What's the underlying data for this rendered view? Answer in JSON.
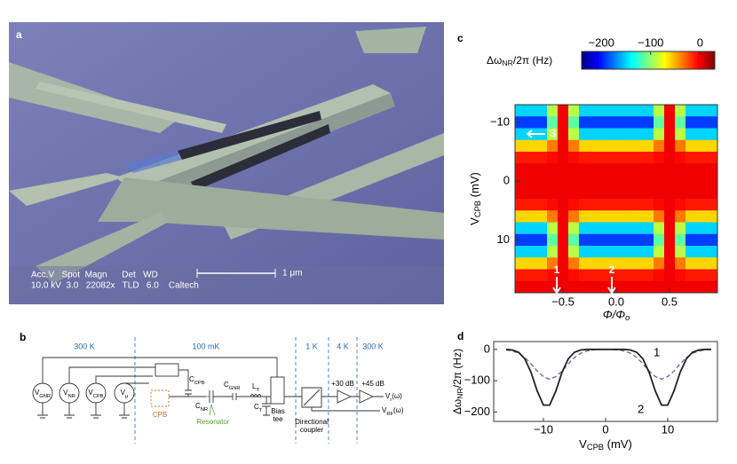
{
  "panel_a": {
    "label": "a",
    "sem_header": "Acc.V   Spot  Magn      Det   WD",
    "sem_values": "10.0 kV  3.0   22082x   TLD   6.0    Caltech",
    "scale_bar": "1 μm"
  },
  "panel_b": {
    "label": "b",
    "stages": [
      "300 K",
      "100 mK",
      "1 K",
      "4 K",
      "300 K"
    ],
    "sources": [
      {
        "main": "V",
        "sub": "GNR"
      },
      {
        "main": "V",
        "sub": "NR"
      },
      {
        "main": "V",
        "sub": "CPB"
      },
      {
        "main": "V",
        "sub": "μ"
      }
    ],
    "components": [
      {
        "main": "C",
        "sub": "CPB"
      },
      {
        "main": "C",
        "sub": "NR"
      },
      {
        "main": "C",
        "sub": "GNR"
      },
      {
        "main": "L",
        "sub": "T"
      },
      {
        "main": "C",
        "sub": "T"
      }
    ],
    "cpb": "CPB",
    "resonator": "Resonator",
    "bias_tee": [
      "Bias",
      "tee"
    ],
    "coupler": [
      "Directional",
      "coupler"
    ],
    "amp1": "+30 dB",
    "amp2": "+45 dB",
    "outputs": [
      {
        "main": "V",
        "sub": "r",
        "suffix": "(ω)"
      },
      {
        "main": "V",
        "sub": "RF",
        "suffix": "(ω)"
      }
    ]
  },
  "chart_data": [
    {
      "type": "heatmap",
      "label": "c",
      "colormap": "jet",
      "colorbar_label": {
        "main": "Δω",
        "sub": "NR",
        "rest": "/2π (Hz)"
      },
      "zlim": [
        -240,
        30
      ],
      "zticks": [
        {
          "value": -200,
          "label": "−200"
        },
        {
          "value": -100,
          "label": "−100"
        },
        0
      ],
      "xlabel": {
        "main": "Φ/Φ",
        "sub": "o"
      },
      "ylabel": {
        "main": "V",
        "sub": "CPB",
        "rest": " (mV)"
      },
      "xlim": [
        -0.95,
        0.95
      ],
      "xticks": [
        {
          "value": -0.5,
          "label": "−0.5"
        },
        {
          "value": 0,
          "label": "0.0"
        },
        0.5
      ],
      "ylim": [
        -13,
        19
      ],
      "y_reversed": true,
      "yticks": [
        {
          "value": -10,
          "label": "−10"
        },
        0,
        10
      ],
      "annotations": [
        "3",
        "1",
        "2"
      ],
      "x": [
        -0.9,
        -0.8,
        -0.7,
        -0.6,
        -0.5,
        -0.4,
        -0.3,
        -0.2,
        -0.1,
        0,
        0.1,
        0.2,
        0.3,
        0.4,
        0.5,
        0.6,
        0.7,
        0.8,
        0.9
      ],
      "y": [
        -12,
        -10,
        -8,
        -6,
        -4,
        -2,
        0,
        2,
        4,
        6,
        8,
        10,
        12,
        14,
        16,
        18
      ],
      "z": [
        [
          -150,
          -150,
          -150,
          -90,
          0,
          -90,
          -150,
          -150,
          -150,
          -150,
          -150,
          -150,
          -150,
          -90,
          0,
          -90,
          -150,
          -150,
          -150
        ],
        [
          -190,
          -190,
          -190,
          -114,
          0,
          -114,
          -190,
          -190,
          -190,
          -190,
          -190,
          -190,
          -190,
          -114,
          0,
          -114,
          -190,
          -190,
          -190
        ],
        [
          -150,
          -150,
          -150,
          -90,
          0,
          -90,
          -150,
          -150,
          -150,
          -150,
          -150,
          -150,
          -150,
          -90,
          0,
          -90,
          -150,
          -150,
          -150
        ],
        [
          -60,
          -60,
          -60,
          -36,
          0,
          -36,
          -60,
          -60,
          -60,
          -60,
          -60,
          -60,
          -60,
          -36,
          0,
          -36,
          -60,
          -60,
          -60
        ],
        [
          -10,
          -10,
          -10,
          -6,
          0,
          -6,
          -10,
          -10,
          -10,
          -10,
          -10,
          -10,
          -10,
          -6,
          0,
          -6,
          -10,
          -10,
          -10
        ],
        [
          0,
          0,
          0,
          0,
          0,
          0,
          0,
          0,
          0,
          0,
          0,
          0,
          0,
          0,
          0,
          0,
          0,
          0,
          0
        ],
        [
          0,
          0,
          0,
          0,
          0,
          0,
          0,
          0,
          0,
          0,
          0,
          0,
          0,
          0,
          0,
          0,
          0,
          0,
          0
        ],
        [
          0,
          0,
          0,
          0,
          0,
          0,
          0,
          0,
          0,
          0,
          0,
          0,
          0,
          0,
          0,
          0,
          0,
          0,
          0
        ],
        [
          -10,
          -10,
          -10,
          -6,
          0,
          -6,
          -10,
          -10,
          -10,
          -10,
          -10,
          -10,
          -10,
          -6,
          0,
          -6,
          -10,
          -10,
          -10
        ],
        [
          -60,
          -60,
          -60,
          -36,
          0,
          -36,
          -60,
          -60,
          -60,
          -60,
          -60,
          -60,
          -60,
          -36,
          0,
          -36,
          -60,
          -60,
          -60
        ],
        [
          -150,
          -150,
          -150,
          -90,
          0,
          -90,
          -150,
          -150,
          -150,
          -150,
          -150,
          -150,
          -150,
          -90,
          0,
          -90,
          -150,
          -150,
          -150
        ],
        [
          -190,
          -190,
          -190,
          -114,
          0,
          -114,
          -190,
          -190,
          -190,
          -190,
          -190,
          -190,
          -190,
          -114,
          0,
          -114,
          -190,
          -190,
          -190
        ],
        [
          -150,
          -150,
          -150,
          -90,
          0,
          -90,
          -150,
          -150,
          -150,
          -150,
          -150,
          -150,
          -150,
          -90,
          0,
          -90,
          -150,
          -150,
          -150
        ],
        [
          -60,
          -60,
          -60,
          -36,
          0,
          -36,
          -60,
          -60,
          -60,
          -60,
          -60,
          -60,
          -60,
          -36,
          0,
          -36,
          -60,
          -60,
          -60
        ],
        [
          -10,
          -10,
          -10,
          -6,
          0,
          -6,
          -10,
          -10,
          -10,
          -10,
          -10,
          -10,
          -10,
          -6,
          0,
          -6,
          -10,
          -10,
          -10
        ],
        [
          0,
          0,
          0,
          0,
          0,
          0,
          0,
          0,
          0,
          0,
          0,
          0,
          0,
          0,
          0,
          0,
          0,
          0,
          0
        ]
      ]
    },
    {
      "type": "line",
      "label": "d",
      "xlabel": {
        "main": "V",
        "sub": "CPB",
        "rest": " (mV)"
      },
      "ylabel": {
        "main": "Δω",
        "sub": "NR",
        "rest": "/2π (Hz)"
      },
      "xlim": [
        -18,
        18
      ],
      "xticks": [
        {
          "value": -10,
          "label": "−10"
        },
        0,
        10
      ],
      "ylim": [
        -230,
        25
      ],
      "yticks": [
        {
          "value": -200,
          "label": "−200"
        },
        {
          "value": -100,
          "label": "−100"
        },
        0
      ],
      "x": [
        -16,
        -15,
        -14,
        -13,
        -12,
        -11,
        -10,
        -9,
        -8,
        -7,
        -6,
        -5,
        -4,
        -3,
        -2,
        -1,
        0,
        1,
        2,
        3,
        4,
        5,
        6,
        7,
        8,
        9,
        10,
        11,
        12,
        13,
        14,
        15,
        16,
        17
      ],
      "series": [
        {
          "name": "1",
          "color": "#5b68a6",
          "dashed": true,
          "values": [
            -2,
            -5,
            -12,
            -26,
            -46,
            -69,
            -87,
            -95,
            -87,
            -69,
            -46,
            -26,
            -12,
            -5,
            -2,
            0,
            0,
            0,
            -2,
            -5,
            -12,
            -26,
            -46,
            -69,
            -87,
            -95,
            -87,
            -69,
            -46,
            -26,
            -12,
            -5,
            -2,
            0
          ]
        },
        {
          "name": "2",
          "color": "#222222",
          "dashed": false,
          "values": [
            0,
            -2,
            -9,
            -30,
            -73,
            -133,
            -178,
            -178,
            -133,
            -73,
            -30,
            -9,
            -2,
            0,
            0,
            0,
            0,
            0,
            0,
            0,
            -2,
            -9,
            -30,
            -73,
            -133,
            -178,
            -178,
            -133,
            -73,
            -30,
            -9,
            -2,
            0,
            0
          ]
        }
      ]
    }
  ]
}
